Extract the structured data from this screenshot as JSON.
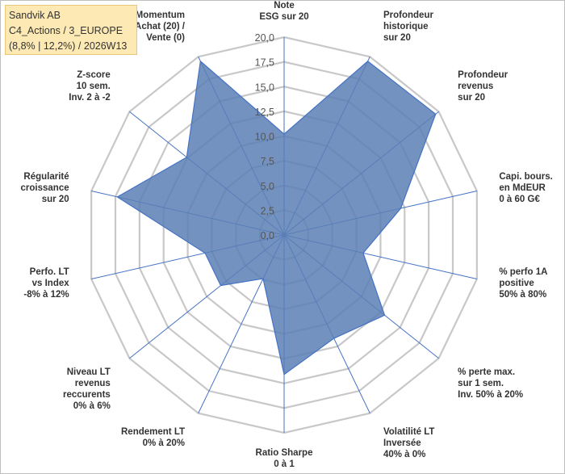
{
  "info": {
    "line1": "Sandvik AB",
    "line2": "C4_Actions / 3_EUROPE",
    "line3": "(8,8% | 12,2%) / 2026W13"
  },
  "chart_data": {
    "type": "radar",
    "title": "Sandvik AB",
    "rmin": 0,
    "rmax": 20,
    "ticks": [
      "0,0",
      "2,5",
      "5,0",
      "7,5",
      "10,0",
      "12,5",
      "15,0",
      "17,5",
      "20,0"
    ],
    "tick_values": [
      0,
      2.5,
      5,
      7.5,
      10,
      12.5,
      15,
      17.5,
      20
    ],
    "colors": {
      "fill": "#5b7fb5",
      "line": "#4472c4",
      "grid": "#c8c8c8",
      "axis": "#4472c4"
    },
    "axes": [
      {
        "label": [
          "Note",
          "ESG sur 20"
        ],
        "value": 10.2
      },
      {
        "label": [
          "Profondeur",
          "historique",
          "sur 20"
        ],
        "value": 19.5
      },
      {
        "label": [
          "Profondeur",
          "revenus",
          "sur 20"
        ],
        "value": 19.6
      },
      {
        "label": [
          "Capi. bours.",
          "en MdEUR",
          "0 à 60 G€"
        ],
        "value": 12.1
      },
      {
        "label": [
          "% perfo 1A",
          "positive",
          "50% à 80%"
        ],
        "value": 8.2
      },
      {
        "label": [
          "% perte max.",
          "sur 1 sem.",
          "Inv. 50% à 20%"
        ],
        "value": 13.0
      },
      {
        "label": [
          "Volatilité LT",
          "Inversée",
          "40% à 0%"
        ],
        "value": 11.6
      },
      {
        "label": [
          "Ratio Sharpe",
          "0 à 1"
        ],
        "value": 14.1
      },
      {
        "label": [
          "Rendement LT",
          "0% à 20%"
        ],
        "value": 4.9
      },
      {
        "label": [
          "Niveau LT",
          "revenus",
          "reccurents",
          "0% à 6%"
        ],
        "value": 8.2
      },
      {
        "label": [
          "Perfo. LT",
          "vs Index",
          "-8% à 12%"
        ],
        "value": 8.2
      },
      {
        "label": [
          "Régularité",
          "croissance",
          "sur 20"
        ],
        "value": 17.3
      },
      {
        "label": [
          "Z-score",
          "10 sem.",
          "Inv. 2 à -2"
        ],
        "value": 12.6
      },
      {
        "label": [
          "Momentum",
          "Achat (20) /",
          "Vente (0)"
        ],
        "value": 19.5
      }
    ]
  }
}
